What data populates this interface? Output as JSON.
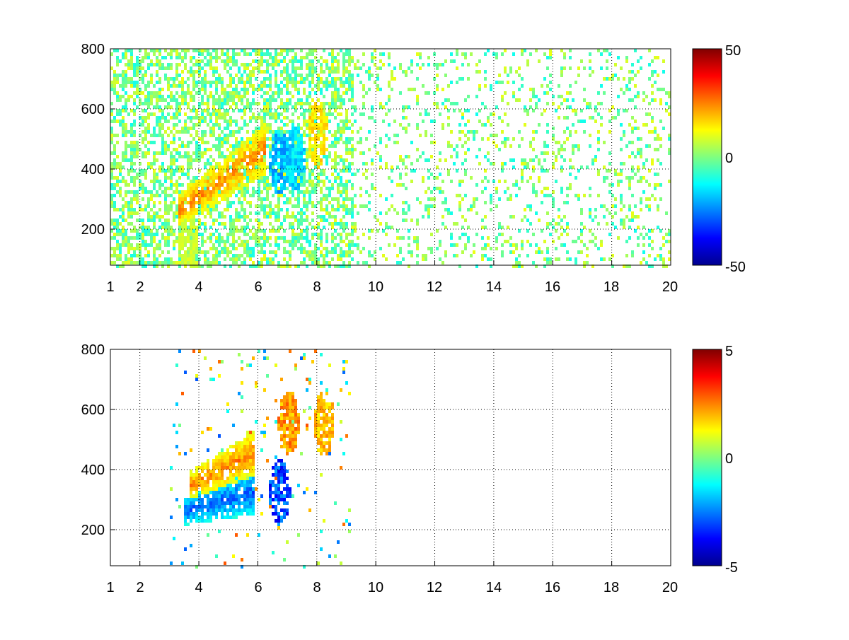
{
  "chart_data": [
    {
      "type": "heatmap",
      "title": "",
      "xlabel": "",
      "ylabel": "",
      "xlim": [
        1,
        20
      ],
      "ylim": [
        80,
        800
      ],
      "x_ticks": [
        1,
        2,
        4,
        6,
        8,
        10,
        12,
        14,
        16,
        18,
        20
      ],
      "x_tick_labels": [
        "1",
        "2",
        "4",
        "6",
        "8",
        "10",
        "12",
        "14",
        "16",
        "18",
        "20"
      ],
      "y_ticks": [
        200,
        400,
        600,
        800
      ],
      "y_tick_labels": [
        "200",
        "400",
        "600",
        "800"
      ],
      "grid": "dotted",
      "colormap": "jet",
      "clim": [
        -50,
        50
      ],
      "colorbar_ticks": [
        50,
        0,
        -50
      ],
      "colorbar_tick_labels": [
        "50",
        "0",
        "-50"
      ],
      "features": [
        {
          "shape": "ridge",
          "x": [
            3.3,
            6.2
          ],
          "y": [
            270,
            470
          ],
          "value": 30,
          "halfwidth": 55
        },
        {
          "shape": "blob",
          "x": 6.7,
          "y": 430,
          "value": -25
        },
        {
          "shape": "blob",
          "x": 7.2,
          "y": 440,
          "value": -22
        },
        {
          "shape": "blob",
          "x": 8.0,
          "y": 520,
          "value": 20
        },
        {
          "shape": "blob",
          "x": 3.6,
          "y": 140,
          "value": 10
        }
      ],
      "background_value": 0
    },
    {
      "type": "heatmap",
      "title": "",
      "xlabel": "",
      "ylabel": "",
      "xlim": [
        1,
        20
      ],
      "ylim": [
        80,
        800
      ],
      "x_ticks": [
        1,
        2,
        4,
        6,
        8,
        10,
        12,
        14,
        16,
        18,
        20
      ],
      "x_tick_labels": [
        "1",
        "2",
        "4",
        "6",
        "8",
        "10",
        "12",
        "14",
        "16",
        "18",
        "20"
      ],
      "y_ticks": [
        200,
        400,
        600,
        800
      ],
      "y_tick_labels": [
        "200",
        "400",
        "600",
        "800"
      ],
      "grid": "dotted",
      "colormap": "jet",
      "clim": [
        -5,
        5
      ],
      "colorbar_ticks": [
        5,
        0,
        -5
      ],
      "colorbar_tick_labels": [
        "5",
        "0",
        "-5"
      ],
      "features": [
        {
          "shape": "ridge",
          "x": [
            3.4,
            5.8
          ],
          "y": [
            265,
            330
          ],
          "value": -3.5
        },
        {
          "shape": "ridge",
          "x": [
            3.6,
            5.8
          ],
          "y": [
            350,
            460
          ],
          "value": 3
        },
        {
          "shape": "blob",
          "x": 6.7,
          "y": 330,
          "value": -4
        },
        {
          "shape": "blob",
          "x": 7.0,
          "y": 560,
          "value": 3
        },
        {
          "shape": "blob",
          "x": 8.2,
          "y": 560,
          "value": 2.5
        }
      ],
      "extent_xmax": 9.1
    }
  ]
}
